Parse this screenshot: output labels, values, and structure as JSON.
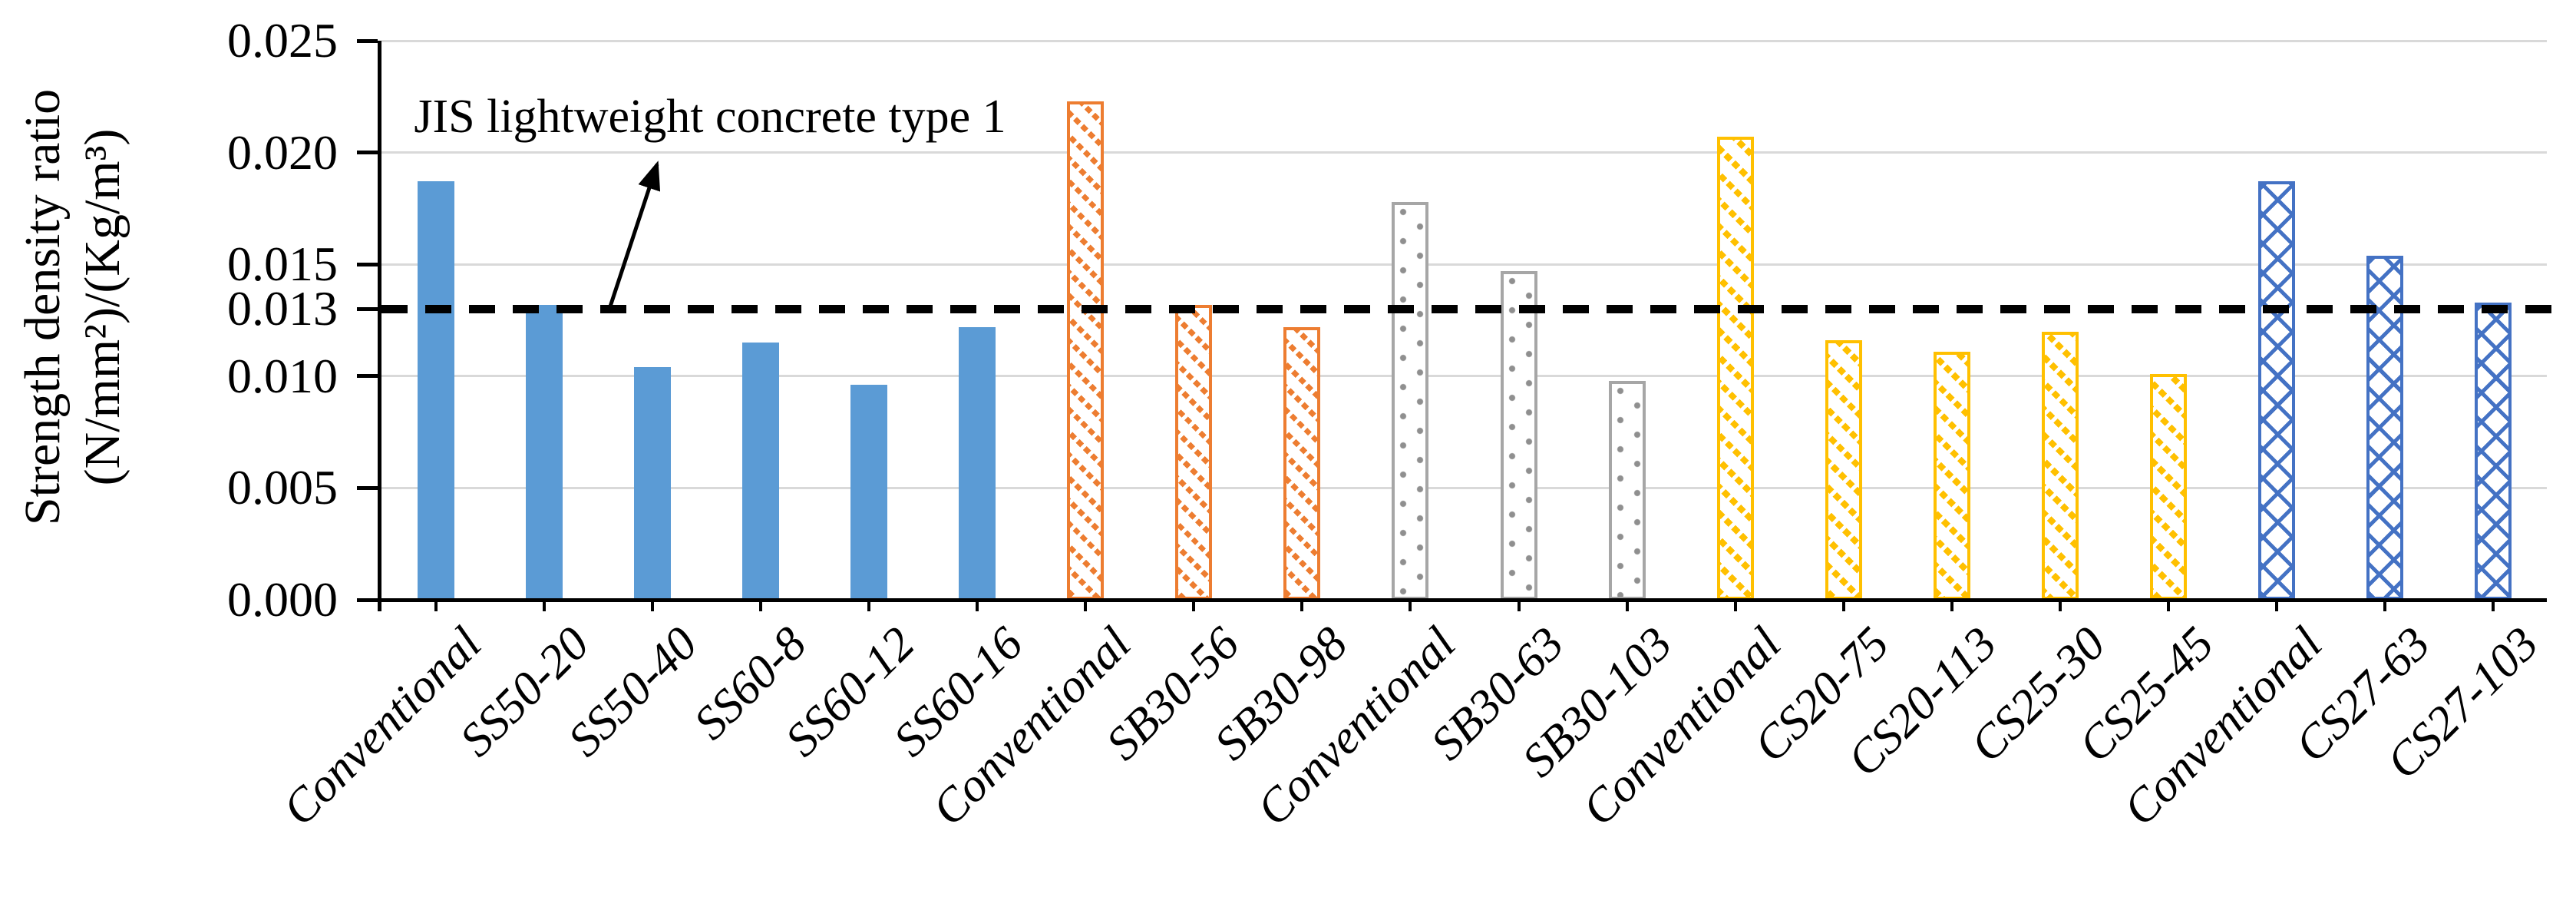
{
  "chart_data": {
    "type": "bar",
    "title": "",
    "ylabel_line1": "Strength density ratio",
    "ylabel_line2": "(N/mm²)/(Kg/m³)",
    "xlabel": "",
    "ylim": [
      0,
      0.025
    ],
    "y_tick_values": [
      0,
      0.005,
      0.01,
      0.013,
      0.015,
      0.02,
      0.025
    ],
    "y_tick_labels": [
      "0.000",
      "0.005",
      "0.010",
      "0.013",
      "0.015",
      "0.020",
      "0.025"
    ],
    "gridlines": {
      "show": true,
      "values": [
        0.005,
        0.01,
        0.015,
        0.02,
        0.025
      ],
      "color": "#d9d9d9"
    },
    "legend": "none",
    "categories": [
      "Conventional",
      "SS50-20",
      "SS50-40",
      "SS60-8",
      "SS60-12",
      "SS60-16",
      "Conventional",
      "SB30-56",
      "SB30-98",
      "Conventional",
      "SB30-63",
      "SB30-103",
      "Conventional",
      "CS20-75",
      "CS20-113",
      "CS25-30",
      "CS25-45",
      "Conventional",
      "CS27-63",
      "CS27-103"
    ],
    "values": [
      0.0187,
      0.0132,
      0.0104,
      0.0115,
      0.0096,
      0.0122,
      0.0223,
      0.0132,
      0.0122,
      0.0178,
      0.0147,
      0.0098,
      0.0207,
      0.0116,
      0.0111,
      0.012,
      0.0101,
      0.0187,
      0.0154,
      0.0133
    ],
    "bar_group_index": [
      0,
      0,
      0,
      0,
      0,
      0,
      1,
      1,
      1,
      2,
      2,
      2,
      3,
      3,
      3,
      3,
      3,
      4,
      4,
      4
    ],
    "groups": [
      {
        "pattern": "solid",
        "color": "#5B9BD5"
      },
      {
        "pattern": "diagonal-dotted-hatch",
        "color": "#ED7D31"
      },
      {
        "pattern": "dotted",
        "color": "#A6A6A6"
      },
      {
        "pattern": "diagonal-dotted-hatch",
        "color": "#FFC000"
      },
      {
        "pattern": "diamond-crosshatch",
        "color": "#4472C4"
      }
    ],
    "reference_line": {
      "value": 0.013,
      "style": "dashed",
      "color": "#000000",
      "label": "JIS lightweight concrete type 1"
    }
  }
}
